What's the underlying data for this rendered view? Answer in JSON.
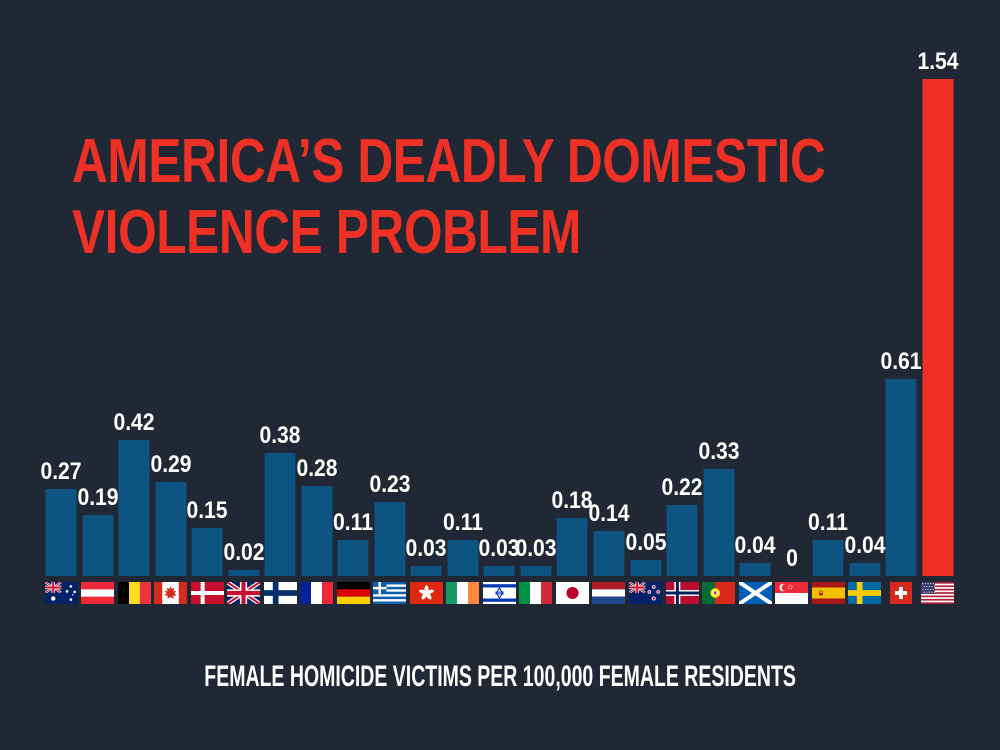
{
  "title_lines": [
    "AMERICA’S DEADLY DOMESTIC",
    "VIOLENCE PROBLEM"
  ],
  "subtitle": "FEMALE HOMICIDE VICTIMS PER 100,000 FEMALE RESIDENTS",
  "colors": {
    "background": "#202835",
    "bar": "#0D5483",
    "highlight": "#EE3124",
    "title": "#EE3124",
    "value_label": "#FFFFFF"
  },
  "countries": [
    {
      "id": "australia",
      "name": "Australia",
      "value": 0.27,
      "label": "0.27",
      "flag": "australia-flag-icon"
    },
    {
      "id": "austria",
      "name": "Austria",
      "value": 0.19,
      "label": "0.19",
      "flag": "austria-flag-icon"
    },
    {
      "id": "belgium",
      "name": "Belgium",
      "value": 0.42,
      "label": "0.42",
      "flag": "belgium-flag-icon"
    },
    {
      "id": "canada",
      "name": "Canada",
      "value": 0.29,
      "label": "0.29",
      "flag": "canada-flag-icon"
    },
    {
      "id": "denmark",
      "name": "Denmark",
      "value": 0.15,
      "label": "0.15",
      "flag": "denmark-flag-icon"
    },
    {
      "id": "united-kingdom",
      "name": "United Kingdom",
      "value": 0.02,
      "label": "0.02",
      "flag": "united-kingdom-flag-icon"
    },
    {
      "id": "finland",
      "name": "Finland",
      "value": 0.38,
      "label": "0.38",
      "flag": "finland-flag-icon"
    },
    {
      "id": "france",
      "name": "France",
      "value": 0.28,
      "label": "0.28",
      "flag": "france-flag-icon"
    },
    {
      "id": "germany",
      "name": "Germany",
      "value": 0.11,
      "label": "0.11",
      "flag": "germany-flag-icon"
    },
    {
      "id": "greece",
      "name": "Greece",
      "value": 0.23,
      "label": "0.23",
      "flag": "greece-flag-icon"
    },
    {
      "id": "hong-kong",
      "name": "Hong Kong",
      "value": 0.03,
      "label": "0.03",
      "flag": "hong-kong-flag-icon"
    },
    {
      "id": "ireland",
      "name": "Ireland",
      "value": 0.11,
      "label": "0.11",
      "flag": "ireland-flag-icon"
    },
    {
      "id": "israel",
      "name": "Israel",
      "value": 0.03,
      "label": "0.03",
      "flag": "israel-flag-icon"
    },
    {
      "id": "italy",
      "name": "Italy",
      "value": 0.03,
      "label": "0.03",
      "flag": "italy-flag-icon"
    },
    {
      "id": "japan",
      "name": "Japan",
      "value": 0.18,
      "label": "0.18",
      "flag": "japan-flag-icon"
    },
    {
      "id": "netherlands",
      "name": "Netherlands",
      "value": 0.14,
      "label": "0.14",
      "flag": "netherlands-flag-icon"
    },
    {
      "id": "new-zealand",
      "name": "New Zealand",
      "value": 0.05,
      "label": "0.05",
      "flag": "new-zealand-flag-icon"
    },
    {
      "id": "norway",
      "name": "Norway",
      "value": 0.22,
      "label": "0.22",
      "flag": "norway-flag-icon"
    },
    {
      "id": "portugal",
      "name": "Portugal",
      "value": 0.33,
      "label": "0.33",
      "flag": "portugal-flag-icon"
    },
    {
      "id": "scotland",
      "name": "Scotland",
      "value": 0.04,
      "label": "0.04",
      "flag": "scotland-flag-icon"
    },
    {
      "id": "singapore",
      "name": "Singapore",
      "value": 0,
      "label": "0",
      "flag": "singapore-flag-icon"
    },
    {
      "id": "spain",
      "name": "Spain",
      "value": 0.11,
      "label": "0.11",
      "flag": "spain-flag-icon"
    },
    {
      "id": "sweden",
      "name": "Sweden",
      "value": 0.04,
      "label": "0.04",
      "flag": "sweden-flag-icon"
    },
    {
      "id": "switzerland",
      "name": "Switzerland",
      "value": 0.61,
      "label": "0.61",
      "flag": "switzerland-flag-icon"
    },
    {
      "id": "united-states",
      "name": "United States",
      "value": 1.54,
      "label": "1.54",
      "flag": "united-states-flag-icon"
    }
  ],
  "chart_data": {
    "type": "bar",
    "title": "AMERICA’S DEADLY DOMESTIC VIOLENCE PROBLEM",
    "xlabel": "FEMALE HOMICIDE VICTIMS PER 100,000 FEMALE RESIDENTS",
    "ylabel": "",
    "ylim": [
      0,
      1.54
    ],
    "grid": false,
    "legend": false,
    "value_labels": true,
    "categories": [
      "Australia",
      "Austria",
      "Belgium",
      "Canada",
      "Denmark",
      "United Kingdom",
      "Finland",
      "France",
      "Germany",
      "Greece",
      "Hong Kong",
      "Ireland",
      "Israel",
      "Italy",
      "Japan",
      "Netherlands",
      "New Zealand",
      "Norway",
      "Portugal",
      "Scotland",
      "Singapore",
      "Spain",
      "Sweden",
      "Switzerland",
      "United States"
    ],
    "values": [
      0.27,
      0.19,
      0.42,
      0.29,
      0.15,
      0.02,
      0.38,
      0.28,
      0.11,
      0.23,
      0.03,
      0.11,
      0.03,
      0.03,
      0.18,
      0.14,
      0.05,
      0.22,
      0.33,
      0.04,
      0,
      0.11,
      0.04,
      0.61,
      1.54
    ],
    "highlight_index": 24,
    "highlight_category": "United States",
    "bar_color": "#0D5483",
    "highlight_color": "#EE3124"
  }
}
